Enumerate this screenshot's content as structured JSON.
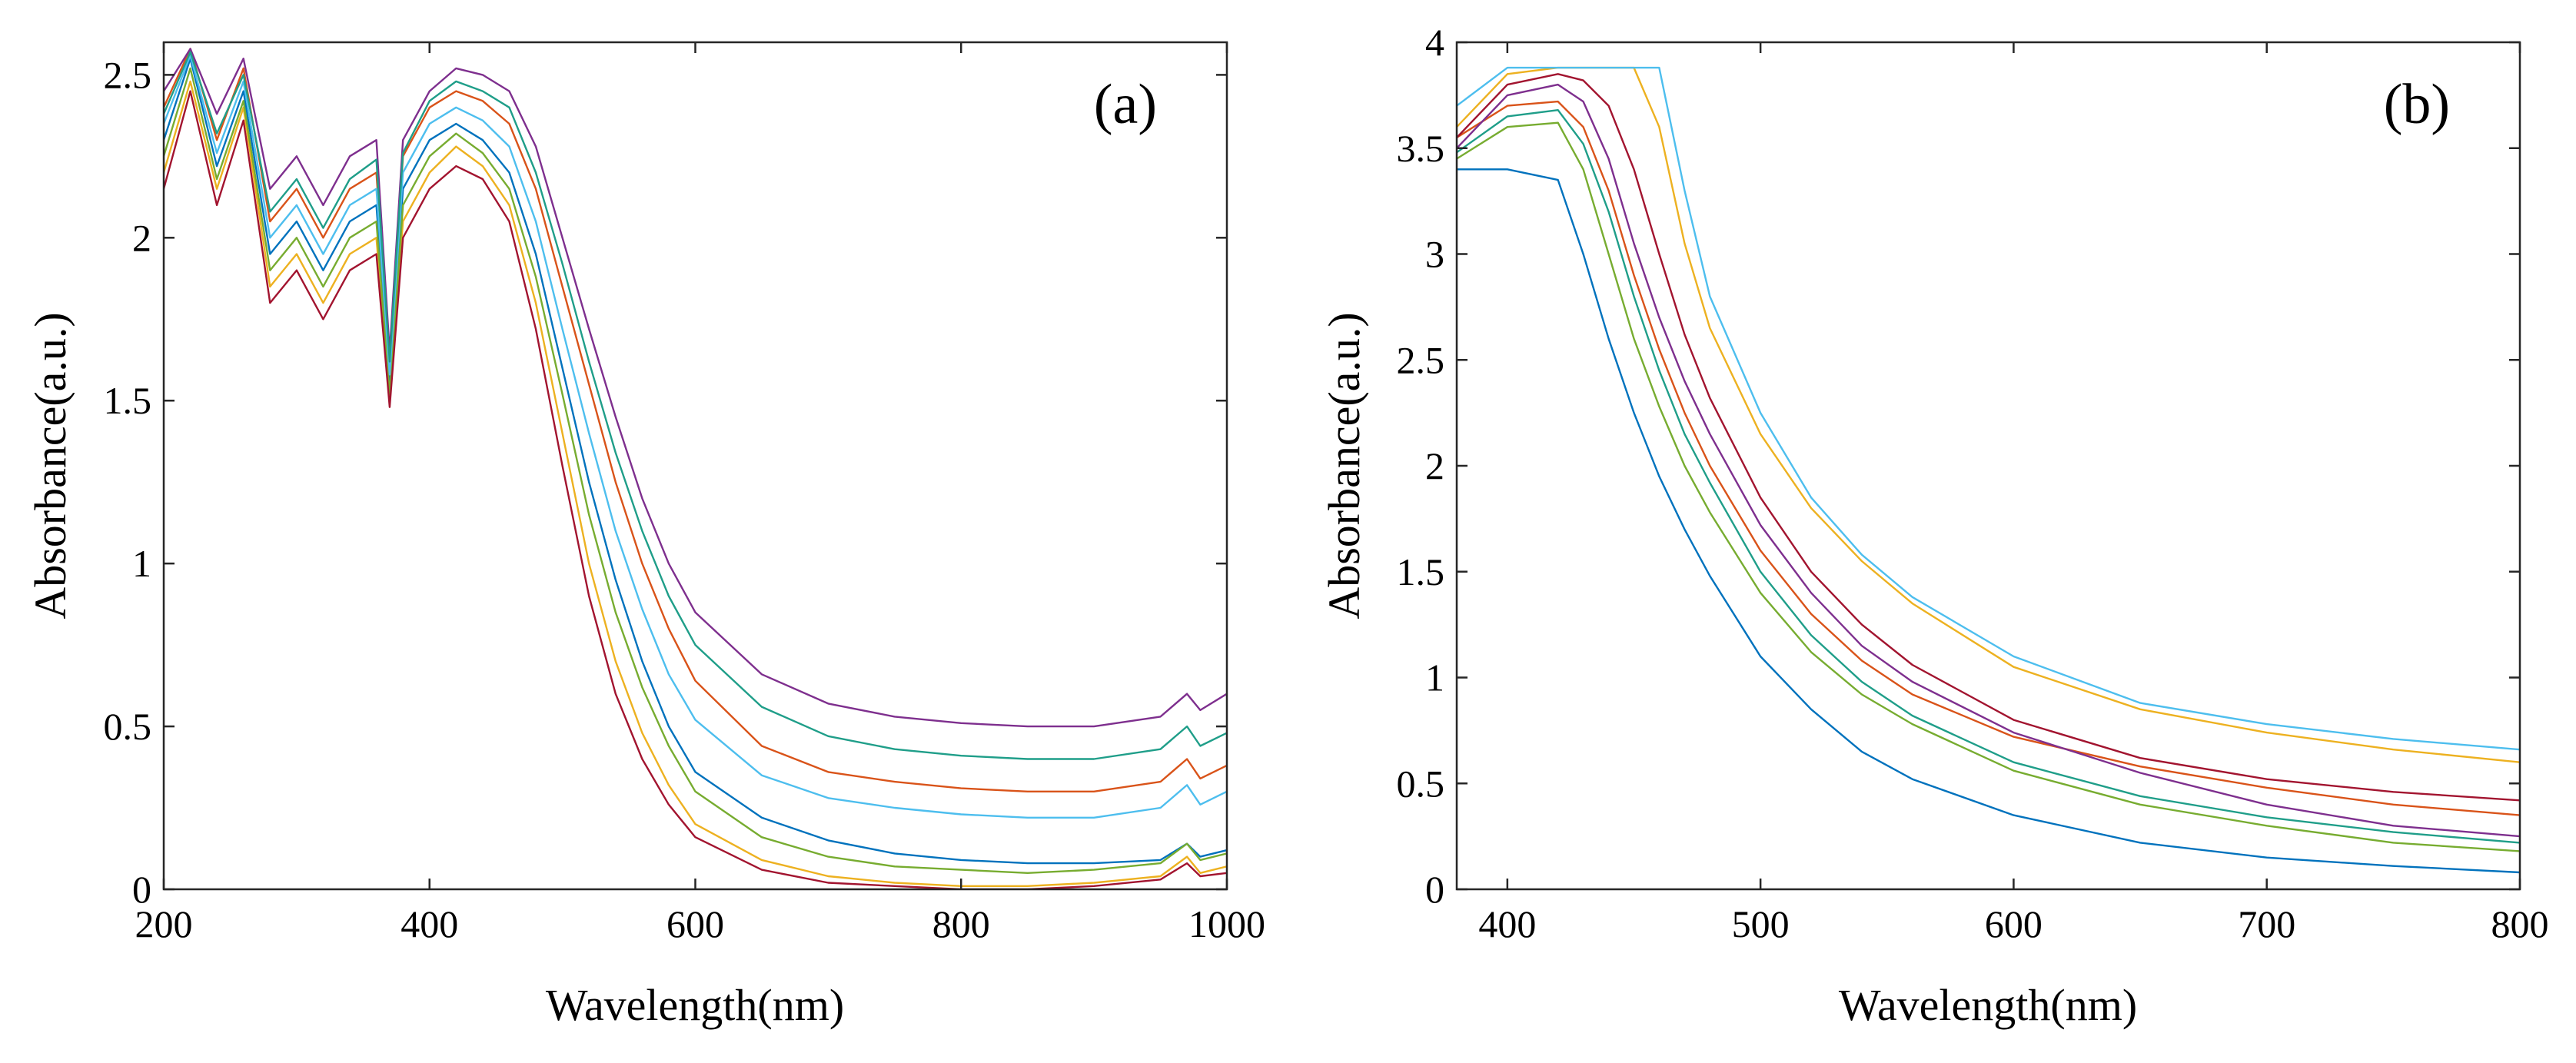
{
  "figure": {
    "panels": [
      "(a)",
      "(b)"
    ]
  },
  "chart_data": [
    {
      "panel_label": "(a)",
      "type": "line",
      "title": "",
      "xlabel": "Wavelength(nm)",
      "ylabel": "Absorbance(a.u.)",
      "xlim": [
        200,
        1000
      ],
      "ylim": [
        0,
        2.6
      ],
      "xticks": [
        200,
        400,
        600,
        800,
        1000
      ],
      "xtick_labels": [
        "200",
        "400",
        "600",
        "800",
        "1000"
      ],
      "yticks": [
        0,
        0.5,
        1,
        1.5,
        2,
        2.5
      ],
      "ytick_labels": [
        "0",
        "0.5",
        "1",
        "1.5",
        "2",
        "2.5"
      ],
      "grid": false,
      "legend": "none",
      "x": [
        200,
        220,
        240,
        260,
        280,
        300,
        320,
        340,
        360,
        370,
        380,
        400,
        420,
        440,
        460,
        480,
        500,
        520,
        540,
        560,
        580,
        600,
        650,
        700,
        750,
        800,
        850,
        900,
        950,
        970,
        980,
        1000
      ],
      "series": [
        {
          "name": "s1",
          "values": [
            2.3,
            2.55,
            2.22,
            2.45,
            1.95,
            2.05,
            1.9,
            2.05,
            2.1,
            1.55,
            2.15,
            2.3,
            2.35,
            2.3,
            2.2,
            1.95,
            1.6,
            1.25,
            0.95,
            0.7,
            0.5,
            0.36,
            0.22,
            0.15,
            0.11,
            0.09,
            0.08,
            0.08,
            0.09,
            0.14,
            0.1,
            0.12
          ]
        },
        {
          "name": "s2",
          "values": [
            2.4,
            2.58,
            2.3,
            2.52,
            2.05,
            2.15,
            2.0,
            2.15,
            2.2,
            1.6,
            2.25,
            2.4,
            2.45,
            2.42,
            2.35,
            2.15,
            1.85,
            1.55,
            1.25,
            1.0,
            0.8,
            0.64,
            0.44,
            0.36,
            0.33,
            0.31,
            0.3,
            0.3,
            0.33,
            0.4,
            0.34,
            0.38
          ]
        },
        {
          "name": "s3",
          "values": [
            2.2,
            2.48,
            2.15,
            2.4,
            1.85,
            1.95,
            1.8,
            1.95,
            2.0,
            1.5,
            2.05,
            2.2,
            2.28,
            2.22,
            2.1,
            1.8,
            1.4,
            1.0,
            0.7,
            0.48,
            0.32,
            0.2,
            0.09,
            0.04,
            0.02,
            0.01,
            0.01,
            0.02,
            0.04,
            0.1,
            0.05,
            0.07
          ]
        },
        {
          "name": "s4",
          "values": [
            2.45,
            2.58,
            2.38,
            2.55,
            2.15,
            2.25,
            2.1,
            2.25,
            2.3,
            1.65,
            2.3,
            2.45,
            2.52,
            2.5,
            2.45,
            2.28,
            2.0,
            1.72,
            1.45,
            1.2,
            1.0,
            0.85,
            0.66,
            0.57,
            0.53,
            0.51,
            0.5,
            0.5,
            0.53,
            0.6,
            0.55,
            0.6
          ]
        },
        {
          "name": "s5",
          "values": [
            2.25,
            2.52,
            2.18,
            2.42,
            1.9,
            2.0,
            1.85,
            2.0,
            2.05,
            1.52,
            2.1,
            2.25,
            2.32,
            2.26,
            2.15,
            1.88,
            1.52,
            1.15,
            0.85,
            0.62,
            0.44,
            0.3,
            0.16,
            0.1,
            0.07,
            0.06,
            0.05,
            0.06,
            0.08,
            0.14,
            0.09,
            0.11
          ]
        },
        {
          "name": "s6",
          "values": [
            2.35,
            2.56,
            2.26,
            2.48,
            2.0,
            2.1,
            1.95,
            2.1,
            2.15,
            1.58,
            2.2,
            2.35,
            2.4,
            2.36,
            2.28,
            2.05,
            1.72,
            1.4,
            1.1,
            0.86,
            0.66,
            0.52,
            0.35,
            0.28,
            0.25,
            0.23,
            0.22,
            0.22,
            0.25,
            0.32,
            0.26,
            0.3
          ]
        },
        {
          "name": "s7",
          "values": [
            2.15,
            2.45,
            2.1,
            2.36,
            1.8,
            1.9,
            1.75,
            1.9,
            1.95,
            1.48,
            2.0,
            2.15,
            2.22,
            2.18,
            2.05,
            1.72,
            1.3,
            0.9,
            0.6,
            0.4,
            0.26,
            0.16,
            0.06,
            0.02,
            0.01,
            0.0,
            0.0,
            0.01,
            0.03,
            0.08,
            0.04,
            0.05
          ]
        },
        {
          "name": "s8",
          "values": [
            2.38,
            2.57,
            2.32,
            2.5,
            2.08,
            2.18,
            2.03,
            2.18,
            2.24,
            1.62,
            2.26,
            2.42,
            2.48,
            2.45,
            2.4,
            2.2,
            1.92,
            1.62,
            1.34,
            1.1,
            0.9,
            0.75,
            0.56,
            0.47,
            0.43,
            0.41,
            0.4,
            0.4,
            0.43,
            0.5,
            0.44,
            0.48
          ]
        }
      ]
    },
    {
      "panel_label": "(b)",
      "type": "line",
      "title": "",
      "xlabel": "Wavelength(nm)",
      "ylabel": "Absorbance(a.u.)",
      "xlim": [
        380,
        800
      ],
      "ylim": [
        0,
        4
      ],
      "xticks": [
        400,
        500,
        600,
        700,
        800
      ],
      "xtick_labels": [
        "400",
        "500",
        "600",
        "700",
        "800"
      ],
      "yticks": [
        0,
        0.5,
        1,
        1.5,
        2,
        2.5,
        3,
        3.5,
        4
      ],
      "ytick_labels": [
        "0",
        "0.5",
        "1",
        "1.5",
        "2",
        "2.5",
        "3",
        "3.5",
        "4"
      ],
      "grid": false,
      "legend": "none",
      "x": [
        380,
        400,
        420,
        430,
        440,
        450,
        460,
        470,
        480,
        500,
        520,
        540,
        560,
        600,
        650,
        700,
        750,
        800
      ],
      "series": [
        {
          "name": "s1",
          "values": [
            3.4,
            3.4,
            3.35,
            3.0,
            2.6,
            2.25,
            1.95,
            1.7,
            1.48,
            1.1,
            0.85,
            0.65,
            0.52,
            0.35,
            0.22,
            0.15,
            0.11,
            0.08
          ]
        },
        {
          "name": "s2",
          "values": [
            3.55,
            3.7,
            3.72,
            3.6,
            3.3,
            2.9,
            2.55,
            2.25,
            2.0,
            1.6,
            1.3,
            1.08,
            0.92,
            0.72,
            0.58,
            0.48,
            0.4,
            0.35
          ]
        },
        {
          "name": "s3",
          "values": [
            3.6,
            3.85,
            3.88,
            3.88,
            3.88,
            3.88,
            3.6,
            3.05,
            2.65,
            2.15,
            1.8,
            1.55,
            1.35,
            1.05,
            0.85,
            0.74,
            0.66,
            0.6
          ]
        },
        {
          "name": "s4",
          "values": [
            3.5,
            3.75,
            3.8,
            3.72,
            3.45,
            3.05,
            2.7,
            2.4,
            2.15,
            1.72,
            1.4,
            1.15,
            0.98,
            0.74,
            0.55,
            0.4,
            0.3,
            0.25
          ]
        },
        {
          "name": "s5",
          "values": [
            3.45,
            3.6,
            3.62,
            3.4,
            3.0,
            2.6,
            2.28,
            2.0,
            1.78,
            1.4,
            1.12,
            0.92,
            0.78,
            0.56,
            0.4,
            0.3,
            0.22,
            0.18
          ]
        },
        {
          "name": "s6",
          "values": [
            3.7,
            3.88,
            3.88,
            3.88,
            3.88,
            3.88,
            3.88,
            3.3,
            2.8,
            2.25,
            1.85,
            1.58,
            1.38,
            1.1,
            0.88,
            0.78,
            0.71,
            0.66
          ]
        },
        {
          "name": "s7",
          "values": [
            3.55,
            3.8,
            3.85,
            3.82,
            3.7,
            3.4,
            3.0,
            2.62,
            2.32,
            1.85,
            1.5,
            1.25,
            1.06,
            0.8,
            0.62,
            0.52,
            0.46,
            0.42
          ]
        },
        {
          "name": "s8",
          "values": [
            3.48,
            3.65,
            3.68,
            3.52,
            3.2,
            2.8,
            2.45,
            2.15,
            1.92,
            1.5,
            1.2,
            0.98,
            0.82,
            0.6,
            0.44,
            0.34,
            0.27,
            0.22
          ]
        }
      ]
    }
  ]
}
